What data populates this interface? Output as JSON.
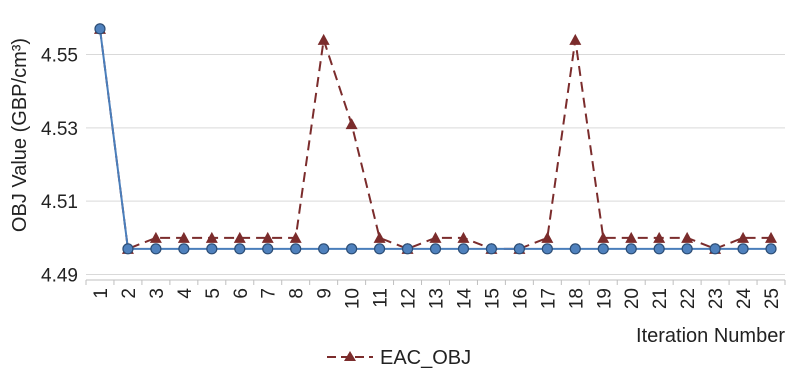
{
  "chart_data": {
    "type": "line",
    "title": "",
    "xlabel": "Iteration Number",
    "ylabel": "OBJ Value (GBP/cm³)",
    "x": [
      1,
      2,
      3,
      4,
      5,
      6,
      7,
      8,
      9,
      10,
      11,
      12,
      13,
      14,
      15,
      16,
      17,
      18,
      19,
      20,
      21,
      22,
      23,
      24,
      25
    ],
    "yticks": [
      "4.49",
      "4.51",
      "4.53",
      "4.55"
    ],
    "ylim": [
      4.4885,
      4.5605
    ],
    "grid": "horizontal",
    "legend_position": "bottom",
    "series": [
      {
        "name": "",
        "style": "solid",
        "marker": "circle",
        "color": "#4a7ebb",
        "marker_color": "#4f81bd",
        "values": [
          4.557,
          4.497,
          4.497,
          4.497,
          4.497,
          4.497,
          4.497,
          4.497,
          4.497,
          4.497,
          4.497,
          4.497,
          4.497,
          4.497,
          4.497,
          4.497,
          4.497,
          4.497,
          4.497,
          4.497,
          4.497,
          4.497,
          4.497,
          4.497,
          4.497
        ]
      },
      {
        "name": "EAC_OBJ",
        "style": "dashed",
        "marker": "triangle",
        "color": "#7b2c2c",
        "values": [
          4.557,
          4.497,
          4.5,
          4.5,
          4.5,
          4.5,
          4.5,
          4.5,
          4.554,
          4.531,
          4.5,
          4.497,
          4.5,
          4.5,
          4.497,
          4.497,
          4.5,
          4.554,
          4.5,
          4.5,
          4.5,
          4.5,
          4.497,
          4.5,
          4.5
        ]
      }
    ]
  }
}
